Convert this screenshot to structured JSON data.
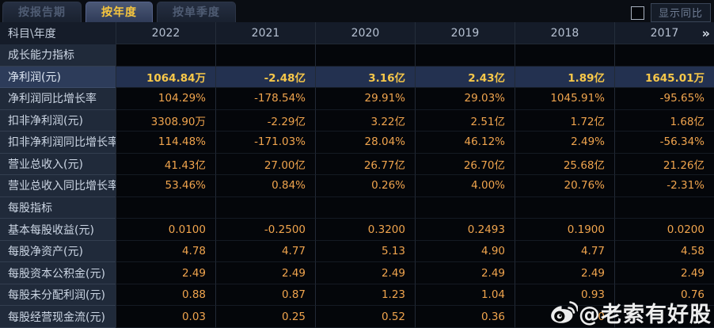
{
  "tabs": [
    {
      "label": "按报告期",
      "active": false
    },
    {
      "label": "按年度",
      "active": true
    },
    {
      "label": "按单季度",
      "active": false
    }
  ],
  "controls": {
    "show_yoy_checkbox_checked": false,
    "show_yoy_label": "显示同比"
  },
  "table": {
    "corner_header": "科目\\年度",
    "years": [
      "2022",
      "2021",
      "2020",
      "2019",
      "2018",
      "2017"
    ],
    "more_columns_icon": "»",
    "rows": [
      {
        "type": "section",
        "label": "成长能力指标",
        "values": [
          "",
          "",
          "",
          "",
          "",
          ""
        ]
      },
      {
        "type": "highlight",
        "label": "净利润(元)",
        "values": [
          "1064.84万",
          "-2.48亿",
          "3.16亿",
          "2.43亿",
          "1.89亿",
          "1645.01万"
        ]
      },
      {
        "type": "data",
        "label": "净利润同比增长率",
        "values": [
          "104.29%",
          "-178.54%",
          "29.91%",
          "29.03%",
          "1045.91%",
          "-95.65%"
        ]
      },
      {
        "type": "data",
        "label": "扣非净利润(元)",
        "values": [
          "3308.90万",
          "-2.29亿",
          "3.22亿",
          "2.51亿",
          "1.72亿",
          "1.68亿"
        ]
      },
      {
        "type": "data",
        "label": "扣非净利润同比增长率",
        "values": [
          "114.48%",
          "-171.03%",
          "28.04%",
          "46.12%",
          "2.49%",
          "-56.34%"
        ]
      },
      {
        "type": "data",
        "label": "营业总收入(元)",
        "values": [
          "41.43亿",
          "27.00亿",
          "26.77亿",
          "26.70亿",
          "25.68亿",
          "21.26亿"
        ]
      },
      {
        "type": "data",
        "label": "营业总收入同比增长率",
        "values": [
          "53.46%",
          "0.84%",
          "0.26%",
          "4.00%",
          "20.76%",
          "-2.31%"
        ]
      },
      {
        "type": "section",
        "label": "每股指标",
        "values": [
          "",
          "",
          "",
          "",
          "",
          ""
        ]
      },
      {
        "type": "data",
        "label": "基本每股收益(元)",
        "values": [
          "0.0100",
          "-0.2500",
          "0.3200",
          "0.2493",
          "0.1900",
          "0.0200"
        ]
      },
      {
        "type": "data",
        "label": "每股净资产(元)",
        "values": [
          "4.78",
          "4.77",
          "5.13",
          "4.90",
          "4.77",
          "4.58"
        ]
      },
      {
        "type": "data",
        "label": "每股资本公积金(元)",
        "values": [
          "2.49",
          "2.49",
          "2.49",
          "2.49",
          "2.49",
          "2.49"
        ]
      },
      {
        "type": "data",
        "label": "每股未分配利润(元)",
        "values": [
          "0.88",
          "0.87",
          "1.23",
          "1.04",
          "0.93",
          "0.76"
        ]
      },
      {
        "type": "data",
        "label": "每股经营现金流(元)",
        "values": [
          "0.03",
          "0.25",
          "0.52",
          "0.36",
          "0",
          ""
        ]
      }
    ]
  },
  "watermark": {
    "icon": "weibo-icon",
    "handle": "@老索有好股"
  },
  "colors": {
    "accent_gold": "#f7c63e",
    "value_orange": "#f0a44d",
    "highlight_row_bg": "#233150",
    "label_column_bg": "#202a3a",
    "header_row_bg": "#151c29",
    "page_bg": "#06080c"
  }
}
